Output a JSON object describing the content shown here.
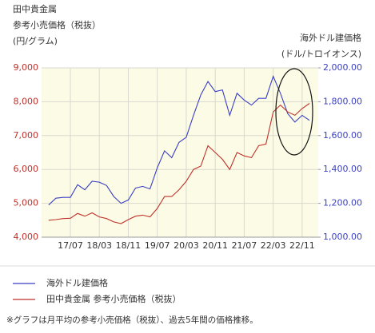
{
  "chart_data": {
    "type": "line",
    "y_label": [
      "田中貴金属",
      "参考小売価格（税抜）",
      "(円/グラム)"
    ],
    "y2_label": [
      "海外ドル建価格",
      "(ドル/トロイオンス)"
    ],
    "categories": [
      null,
      null,
      null,
      "17/07",
      null,
      null,
      null,
      "18/03",
      null,
      null,
      null,
      "18/11",
      null,
      null,
      null,
      "19/07",
      null,
      null,
      null,
      "20/03",
      null,
      null,
      null,
      "20/11",
      null,
      null,
      null,
      "21/07",
      null,
      null,
      null,
      "22/03",
      null,
      null,
      null,
      "22/11",
      null
    ],
    "series": [
      {
        "name": "海外ドル建価格",
        "color": "#3b3fc4",
        "axis": "y2",
        "values": [
          1190,
          1230,
          1235,
          1235,
          1310,
          1280,
          1330,
          1325,
          1305,
          1240,
          1200,
          1220,
          1290,
          1300,
          1285,
          1410,
          1510,
          1470,
          1560,
          1590,
          1720,
          1840,
          1920,
          1860,
          1870,
          1720,
          1850,
          1810,
          1780,
          1820,
          1820,
          1950,
          1850,
          1730,
          1680,
          1720,
          1690
        ]
      },
      {
        "name": "田中貴金属 参考小売価格（税抜）",
        "color": "#c0312b",
        "values": [
          4500,
          4520,
          4550,
          4560,
          4700,
          4620,
          4720,
          4600,
          4550,
          4450,
          4400,
          4520,
          4620,
          4650,
          4600,
          4850,
          5200,
          5200,
          5400,
          5650,
          6000,
          6100,
          6700,
          6500,
          6300,
          6000,
          6500,
          6400,
          6350,
          6700,
          6750,
          7700,
          7900,
          7700,
          7600,
          7800,
          7950
        ]
      }
    ],
    "ylim": [
      4000,
      9000
    ],
    "yticks": [
      {
        "value": 4000,
        "label": "4,000"
      },
      {
        "value": 5000,
        "label": "5,000"
      },
      {
        "value": 6000,
        "label": "6,000"
      },
      {
        "value": 7000,
        "label": "7,000"
      },
      {
        "value": 8000,
        "label": "8,000"
      },
      {
        "value": 9000,
        "label": "9,000"
      }
    ],
    "y2lim": [
      1000,
      2000
    ],
    "y2ticks": [
      {
        "value": 1000,
        "label": "1,000.00"
      },
      {
        "value": 1200,
        "label": "1,200.00"
      },
      {
        "value": 1400,
        "label": "1,400.00"
      },
      {
        "value": 1600,
        "label": "1,600.00"
      },
      {
        "value": 1800,
        "label": "1,800.00"
      },
      {
        "value": 2000,
        "label": "2,000.00"
      }
    ],
    "grid": true,
    "note": "※グラフは月平均の参考小売価格（税抜）、過去5年間の価格推移。"
  }
}
